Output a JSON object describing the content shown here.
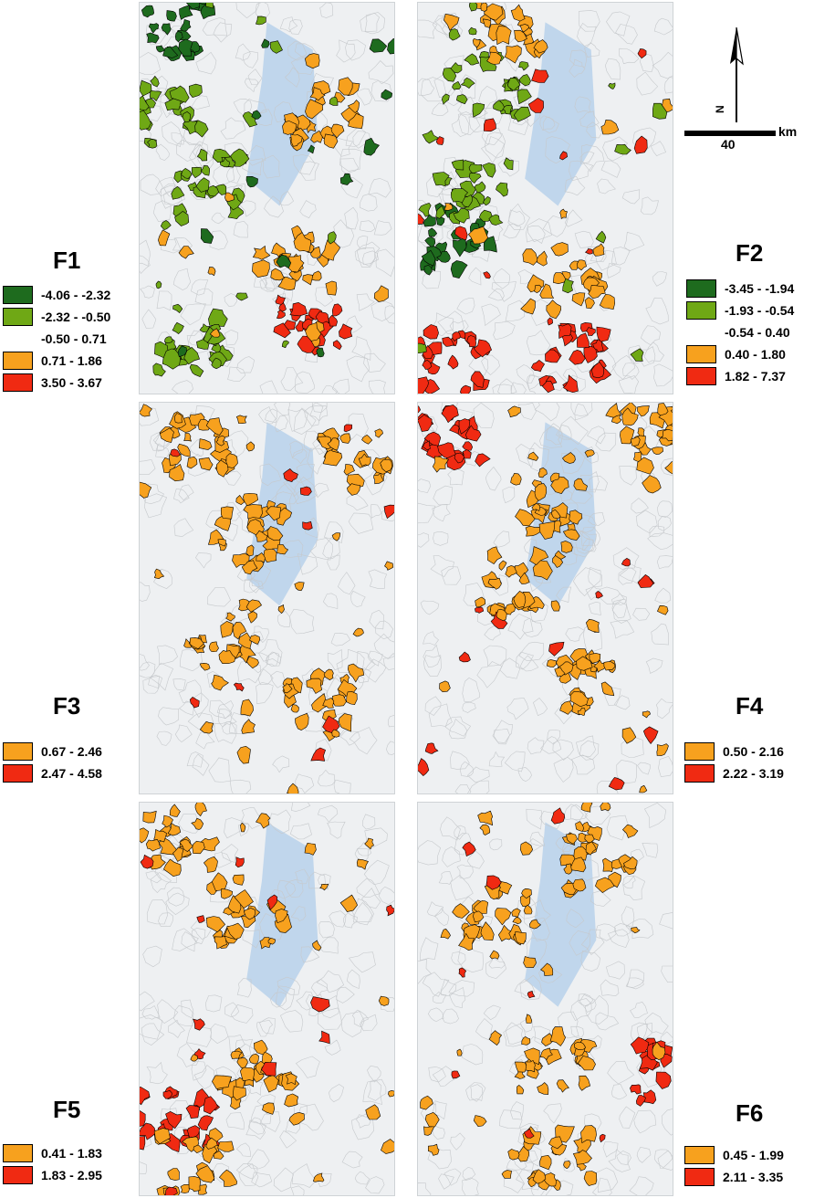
{
  "colors": {
    "dark_green": "#1e6b1e",
    "light_green": "#6fa815",
    "orange": "#f7a11e",
    "red": "#f02a12",
    "water": "#b4cfea",
    "basemap": "#eef0f2"
  },
  "north_arrow": {
    "label": "N",
    "icon": "north-arrow-icon"
  },
  "scale_bar": {
    "value": "40",
    "unit": "km"
  },
  "panels": [
    {
      "title": "F1",
      "legend": [
        {
          "label": "-4.06 - -2.32",
          "color": "#1e6b1e"
        },
        {
          "label": "-2.32 - -0.50",
          "color": "#6fa815"
        },
        {
          "label": "-0.50 - 0.71",
          "color": "none"
        },
        {
          "label": "0.71 - 1.86",
          "color": "#f7a11e"
        },
        {
          "label": "3.50 - 3.67",
          "color": "#f02a12"
        }
      ]
    },
    {
      "title": "F2",
      "legend": [
        {
          "label": "-3.45 - -1.94",
          "color": "#1e6b1e"
        },
        {
          "label": "-1.93 - -0.54",
          "color": "#6fa815"
        },
        {
          "label": "-0.54 - 0.40",
          "color": "none"
        },
        {
          "label": "0.40 - 1.80",
          "color": "#f7a11e"
        },
        {
          "label": "1.82 - 7.37",
          "color": "#f02a12"
        }
      ]
    },
    {
      "title": "F3",
      "legend": [
        {
          "label": "0.67 - 2.46",
          "color": "#f7a11e"
        },
        {
          "label": "2.47 - 4.58",
          "color": "#f02a12"
        }
      ]
    },
    {
      "title": "F4",
      "legend": [
        {
          "label": "0.50 - 2.16",
          "color": "#f7a11e"
        },
        {
          "label": "2.22 - 3.19",
          "color": "#f02a12"
        }
      ]
    },
    {
      "title": "F5",
      "legend": [
        {
          "label": "0.41 - 1.83",
          "color": "#f7a11e"
        },
        {
          "label": "1.83 - 2.95",
          "color": "#f02a12"
        }
      ]
    },
    {
      "title": "F6",
      "legend": [
        {
          "label": "0.45 - 1.99",
          "color": "#f7a11e"
        },
        {
          "label": "2.11 - 3.35",
          "color": "#f02a12"
        }
      ]
    }
  ]
}
